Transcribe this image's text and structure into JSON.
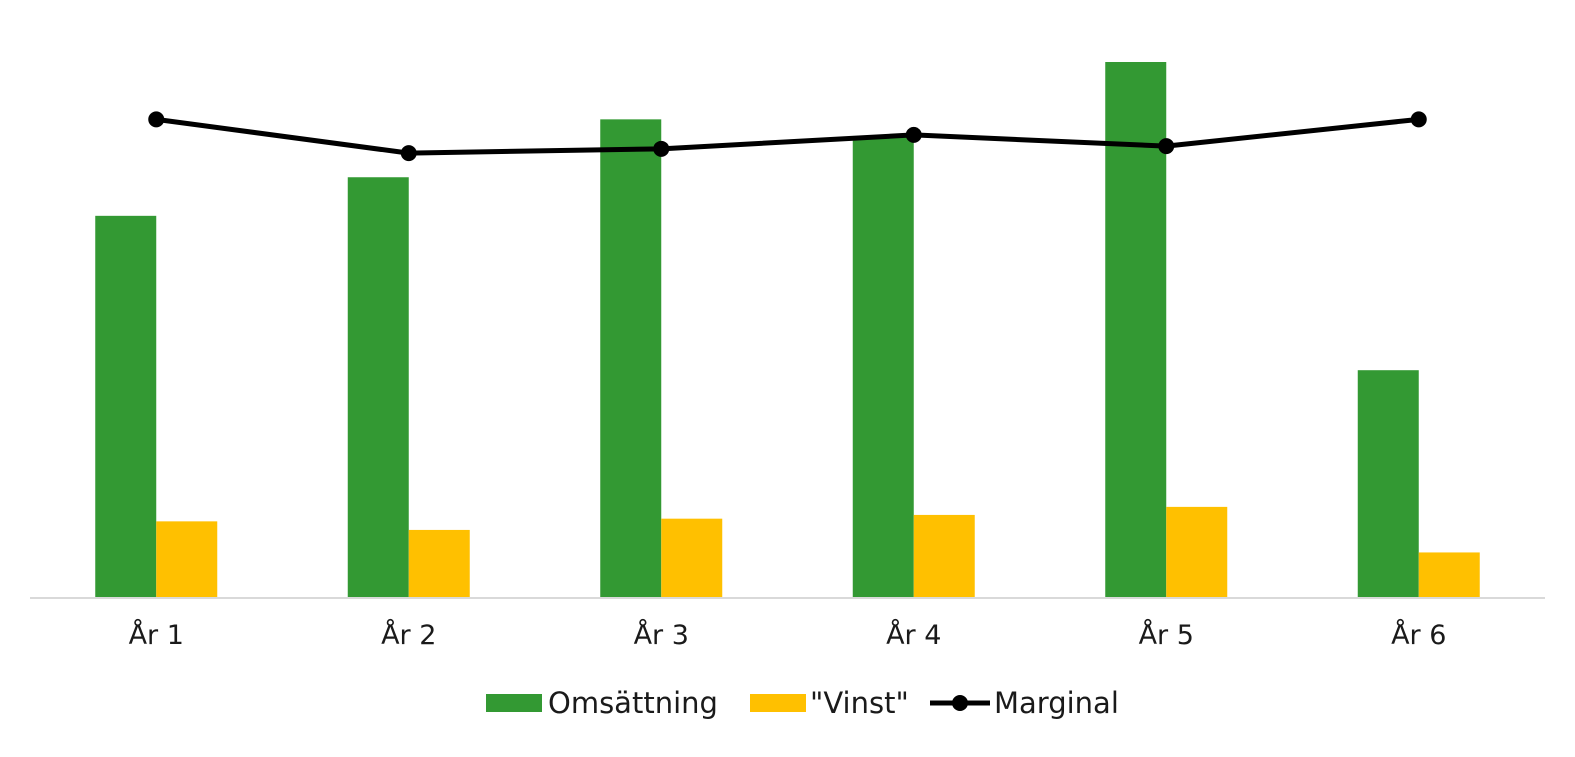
{
  "chart_data": {
    "type": "bar",
    "title": "",
    "xlabel": "",
    "ylabel": "",
    "categories": [
      "År 1",
      "År 2",
      "År 3",
      "År 4",
      "År 5",
      "År 6"
    ],
    "ylim": [
      0,
      100
    ],
    "grid": false,
    "legend_position": "bottom-center",
    "series": [
      {
        "name": "Omsättning",
        "kind": "bar",
        "color": "#339933",
        "values": [
          71.3,
          78.5,
          89.3,
          86.2,
          100.0,
          42.5
        ]
      },
      {
        "name": "\"Vinst\"",
        "kind": "bar",
        "color": "#FFC000",
        "values": [
          14.3,
          12.7,
          14.8,
          15.5,
          17.0,
          8.5
        ]
      },
      {
        "name": "Marginal",
        "kind": "line",
        "color": "#000000",
        "values": [
          89.3,
          83.0,
          83.8,
          86.4,
          84.3,
          89.3
        ]
      }
    ]
  }
}
